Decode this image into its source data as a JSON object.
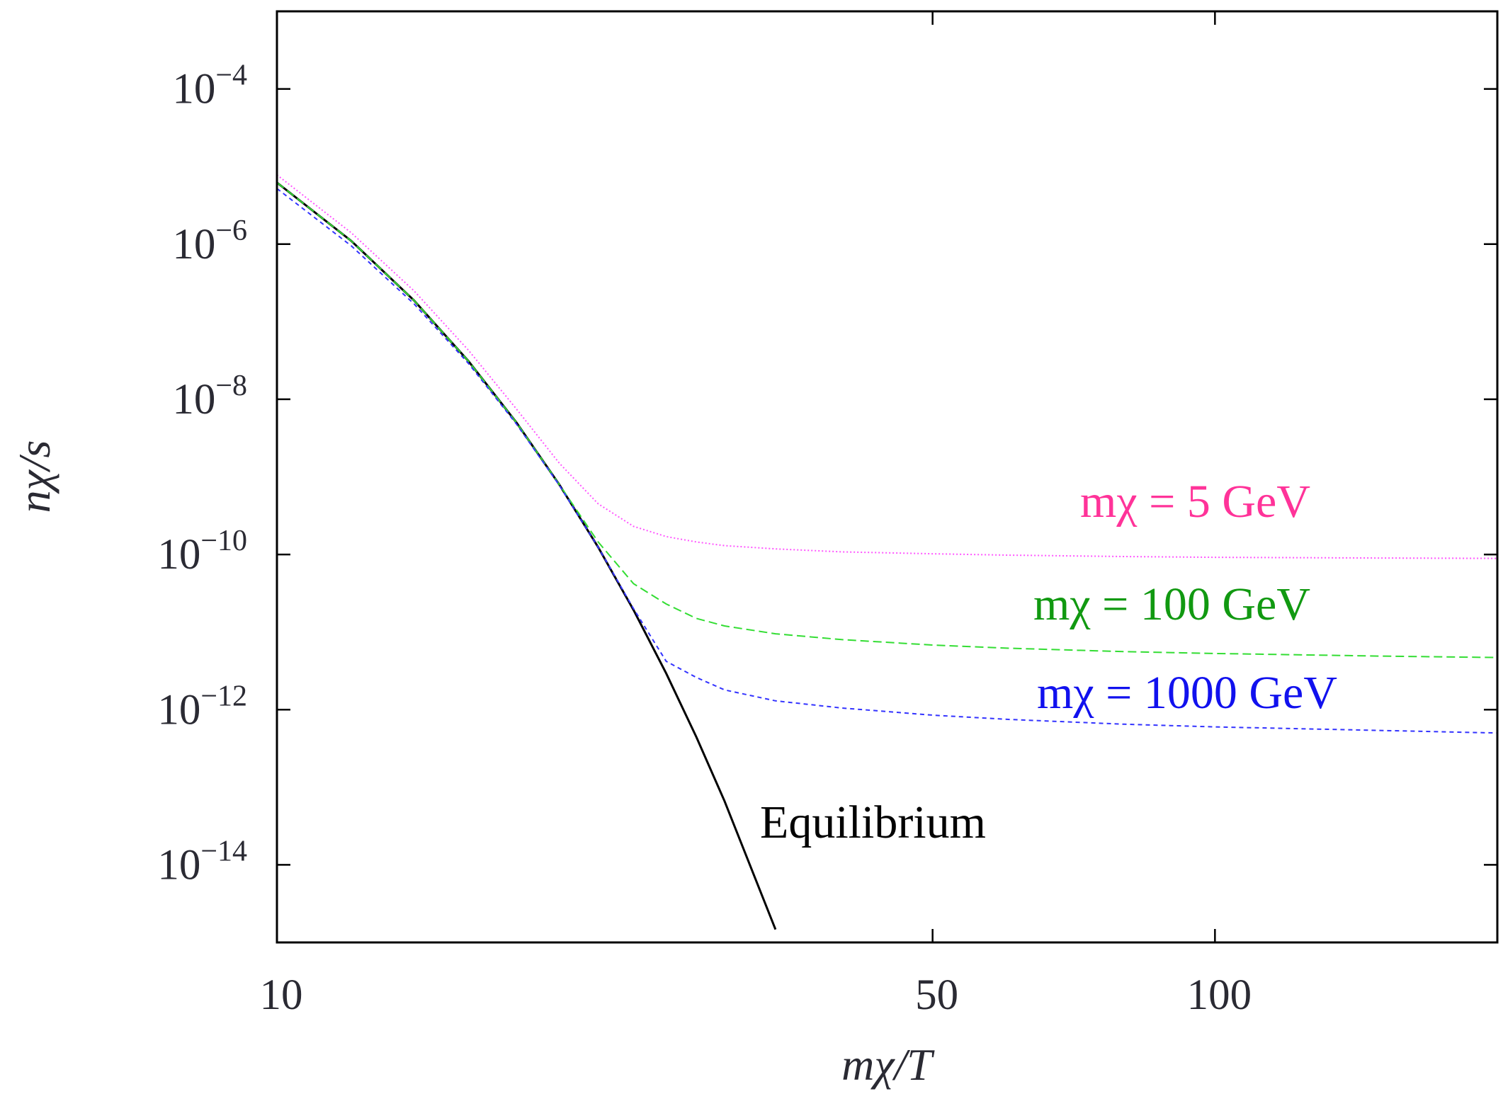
{
  "chart_data": {
    "type": "line",
    "xlabel": "mχ/T",
    "ylabel": "nχ/s",
    "xscale": "log",
    "yscale": "log",
    "xlim": [
      10,
      200
    ],
    "ylim": [
      1e-15,
      0.001
    ],
    "xticks": [
      10,
      50,
      100
    ],
    "yticks": [
      {
        "value": 1e-14,
        "label": "10−14"
      },
      {
        "value": 1e-12,
        "label": "10−12"
      },
      {
        "value": 1e-10,
        "label": "10−10"
      },
      {
        "value": 1e-08,
        "label": "10−8"
      },
      {
        "value": 1e-06,
        "label": "10−6"
      },
      {
        "value": 0.0001,
        "label": "10−4"
      }
    ],
    "x": [
      10,
      12,
      14,
      16,
      18,
      20,
      22,
      24,
      26,
      28,
      30,
      34,
      40,
      50,
      60,
      80,
      100,
      150,
      200
    ],
    "series": [
      {
        "name": "Equilibrium",
        "color": "#000000",
        "dash": "none",
        "values": [
          6.2e-06,
          1.1e-06,
          1.88e-07,
          3.11e-08,
          5.02e-09,
          7.96e-10,
          1.24e-10,
          1.92e-11,
          2.93e-12,
          4.43e-13,
          6.64e-14,
          1.47e-15,
          null,
          null,
          null,
          null,
          null,
          null,
          null
        ]
      },
      {
        "name": "mχ = 5 GeV",
        "color": "#ff55ff",
        "dash": "2 3",
        "values": [
          7.8e-06,
          1.4e-06,
          2.5e-07,
          4.3e-08,
          7.5e-09,
          1.5e-09,
          4.5e-10,
          2.3e-10,
          1.7e-10,
          1.45e-10,
          1.3e-10,
          1.18e-10,
          1.08e-10,
          1.02e-10,
          9.8e-11,
          9.4e-11,
          9.2e-11,
          9e-11,
          8.9e-11
        ]
      },
      {
        "name": "mχ = 100 GeV",
        "color": "#33dd33",
        "dash": "12 6",
        "values": [
          6.2e-06,
          1.1e-06,
          1.88e-07,
          3.11e-08,
          5.02e-09,
          7.96e-10,
          1.45e-10,
          4.2e-11,
          2.3e-11,
          1.5e-11,
          1.2e-11,
          9.5e-12,
          8e-12,
          6.8e-12,
          6.2e-12,
          5.6e-12,
          5.3e-12,
          4.9e-12,
          4.7e-12
        ]
      },
      {
        "name": "mχ = 1000 GeV",
        "color": "#3333ff",
        "dash": "6 5",
        "values": [
          5.2e-06,
          9.5e-07,
          1.7e-07,
          2.9e-08,
          4.8e-09,
          7.8e-10,
          1.24e-10,
          2e-11,
          4.2e-12,
          2.6e-12,
          1.8e-12,
          1.3e-12,
          1.05e-12,
          8.5e-13,
          7.5e-13,
          6.5e-13,
          6e-13,
          5.4e-13,
          5e-13
        ]
      }
    ],
    "annotations": [
      {
        "text": "mχ = 5 GeV",
        "color": "#ff3399"
      },
      {
        "text": "mχ = 100 GeV",
        "color": "#119911"
      },
      {
        "text": "mχ = 1000 GeV",
        "color": "#1111ee"
      },
      {
        "text": "Equilibrium",
        "color": "#000000"
      }
    ]
  }
}
